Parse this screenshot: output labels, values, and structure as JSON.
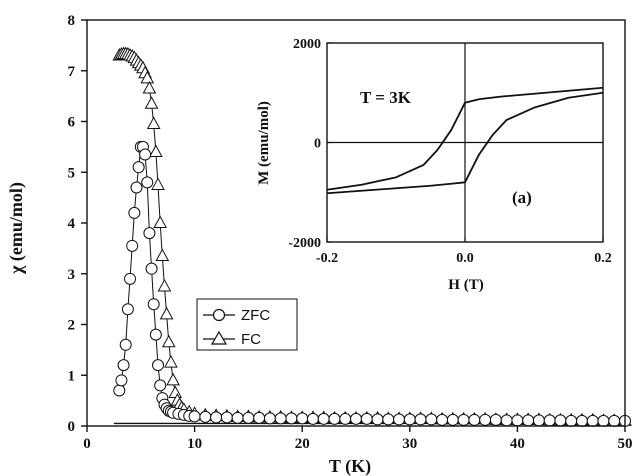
{
  "chart_data": [
    {
      "type": "scatter",
      "xlabel": "T (K)",
      "ylabel": "χ (emu/mol)",
      "xlim": [
        0,
        50
      ],
      "ylim": [
        0,
        8
      ],
      "xticks": [
        "0",
        "10",
        "20",
        "30",
        "40",
        "50"
      ],
      "yticks": [
        "0",
        "1",
        "2",
        "3",
        "4",
        "5",
        "6",
        "7",
        "8"
      ],
      "legend": {
        "placement": "center-left",
        "entries": [
          "ZFC",
          "FC"
        ]
      },
      "series": [
        {
          "name": "ZFC",
          "marker": "circle",
          "x": [
            3.0,
            3.2,
            3.4,
            3.6,
            3.8,
            4.0,
            4.2,
            4.4,
            4.6,
            4.8,
            5.0,
            5.2,
            5.4,
            5.6,
            5.8,
            6.0,
            6.2,
            6.4,
            6.6,
            6.8,
            7.0,
            7.2,
            7.4,
            7.6,
            7.8,
            8.0,
            8.5,
            9.0,
            9.5,
            10,
            11,
            12,
            13,
            14,
            15,
            16,
            17,
            18,
            19,
            20,
            21,
            22,
            23,
            24,
            25,
            26,
            27,
            28,
            29,
            30,
            31,
            32,
            33,
            34,
            35,
            36,
            37,
            38,
            39,
            40,
            41,
            42,
            43,
            44,
            45,
            46,
            47,
            48,
            49,
            50
          ],
          "y": [
            0.7,
            0.9,
            1.2,
            1.6,
            2.3,
            2.9,
            3.55,
            4.2,
            4.7,
            5.1,
            5.5,
            5.5,
            5.35,
            4.8,
            3.8,
            3.1,
            2.4,
            1.8,
            1.2,
            0.8,
            0.55,
            0.42,
            0.35,
            0.3,
            0.28,
            0.26,
            0.24,
            0.22,
            0.2,
            0.19,
            0.18,
            0.17,
            0.17,
            0.16,
            0.16,
            0.16,
            0.15,
            0.15,
            0.15,
            0.15,
            0.14,
            0.14,
            0.14,
            0.14,
            0.14,
            0.14,
            0.13,
            0.13,
            0.13,
            0.13,
            0.13,
            0.13,
            0.12,
            0.12,
            0.12,
            0.12,
            0.12,
            0.12,
            0.11,
            0.11,
            0.11,
            0.11,
            0.11,
            0.11,
            0.1,
            0.1,
            0.1,
            0.1,
            0.1,
            0.1
          ]
        },
        {
          "name": "FC",
          "marker": "triangle",
          "x": [
            3.0,
            3.2,
            3.4,
            3.6,
            3.8,
            4.0,
            4.2,
            4.4,
            4.6,
            4.8,
            5.0,
            5.2,
            5.4,
            5.6,
            5.8,
            6.0,
            6.2,
            6.4,
            6.6,
            6.8,
            7.0,
            7.2,
            7.4,
            7.6,
            7.8,
            8.0,
            8.2,
            8.4,
            8.6,
            8.8,
            9.0,
            9.5,
            10,
            11,
            12,
            13,
            14,
            15,
            16,
            17,
            18,
            19,
            20,
            21,
            22,
            23,
            24,
            25,
            26,
            27,
            28,
            29,
            30,
            31,
            32,
            33,
            34,
            35,
            36,
            37,
            38,
            39,
            40,
            41,
            42,
            43,
            44,
            45,
            46,
            47,
            48,
            49,
            50
          ],
          "y": [
            7.3,
            7.32,
            7.33,
            7.33,
            7.32,
            7.3,
            7.28,
            7.25,
            7.2,
            7.15,
            7.1,
            7.05,
            6.95,
            6.85,
            6.65,
            6.35,
            5.95,
            5.4,
            4.75,
            4.0,
            3.35,
            2.75,
            2.2,
            1.65,
            1.25,
            0.9,
            0.65,
            0.5,
            0.42,
            0.36,
            0.32,
            0.27,
            0.24,
            0.21,
            0.2,
            0.19,
            0.18,
            0.18,
            0.17,
            0.17,
            0.17,
            0.16,
            0.16,
            0.16,
            0.16,
            0.15,
            0.15,
            0.15,
            0.15,
            0.15,
            0.14,
            0.14,
            0.14,
            0.14,
            0.14,
            0.13,
            0.13,
            0.13,
            0.13,
            0.13,
            0.12,
            0.12,
            0.12,
            0.12,
            0.12,
            0.11,
            0.11,
            0.11,
            0.11,
            0.11,
            0.1,
            0.1,
            0.1
          ]
        },
        {
          "name": "",
          "marker": "none",
          "x": [
            2.5,
            10,
            50
          ],
          "y": [
            0.05,
            0.05,
            0.05
          ]
        }
      ]
    },
    {
      "type": "line",
      "xlabel": "H (T)",
      "ylabel": "M (emu/mol)",
      "xlim": [
        -0.2,
        0.2
      ],
      "ylim": [
        -2000,
        2000
      ],
      "xticks": [
        "-0.2",
        "0.0",
        "0.2"
      ],
      "yticks": [
        "-2000",
        "0",
        "2000"
      ],
      "annotations": [
        "T = 3K",
        "(a)"
      ],
      "series": [
        {
          "name": "",
          "x": [
            -0.2,
            -0.15,
            -0.1,
            -0.06,
            -0.04,
            -0.02,
            0.0,
            0.02,
            0.05,
            0.1,
            0.15,
            0.2
          ],
          "y": [
            -950,
            -850,
            -700,
            -450,
            -150,
            250,
            800,
            870,
            920,
            980,
            1040,
            1100
          ]
        },
        {
          "name": "",
          "x": [
            0.2,
            0.15,
            0.1,
            0.06,
            0.04,
            0.02,
            0.0,
            -0.02,
            -0.05,
            -0.1,
            -0.15,
            -0.2
          ],
          "y": [
            1000,
            900,
            700,
            450,
            150,
            -250,
            -800,
            -830,
            -870,
            -920,
            -970,
            -1020
          ]
        }
      ]
    }
  ]
}
